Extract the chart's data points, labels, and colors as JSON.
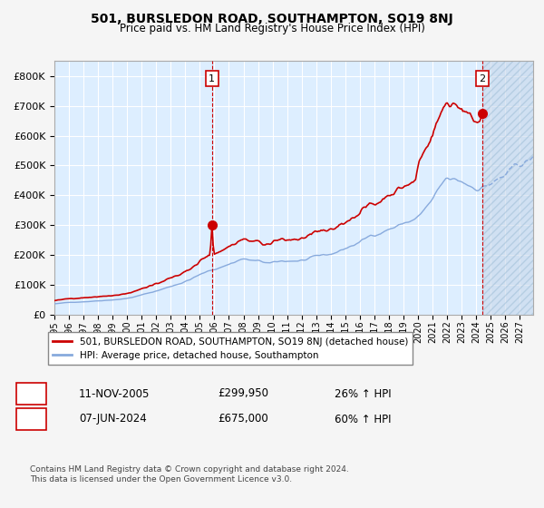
{
  "title": "501, BURSLEDON ROAD, SOUTHAMPTON, SO19 8NJ",
  "subtitle": "Price paid vs. HM Land Registry's House Price Index (HPI)",
  "background_color": "#ddeeff",
  "fig_bg_color": "#f5f5f5",
  "grid_color": "#ffffff",
  "red_line_color": "#cc0000",
  "blue_line_color": "#88aadd",
  "legend_line1": "501, BURSLEDON ROAD, SOUTHAMPTON, SO19 8NJ (detached house)",
  "legend_line2": "HPI: Average price, detached house, Southampton",
  "table_row1": [
    "1",
    "11-NOV-2005",
    "£299,950",
    "26% ↑ HPI"
  ],
  "table_row2": [
    "2",
    "07-JUN-2024",
    "£675,000",
    "60% ↑ HPI"
  ],
  "footnote1": "Contains HM Land Registry data © Crown copyright and database right 2024.",
  "footnote2": "This data is licensed under the Open Government Licence v3.0.",
  "ylim_max": 850000,
  "yticks": [
    0,
    100000,
    200000,
    300000,
    400000,
    500000,
    600000,
    700000,
    800000
  ],
  "ytick_labels": [
    "£0",
    "£100K",
    "£200K",
    "£300K",
    "£400K",
    "£500K",
    "£600K",
    "£700K",
    "£800K"
  ]
}
